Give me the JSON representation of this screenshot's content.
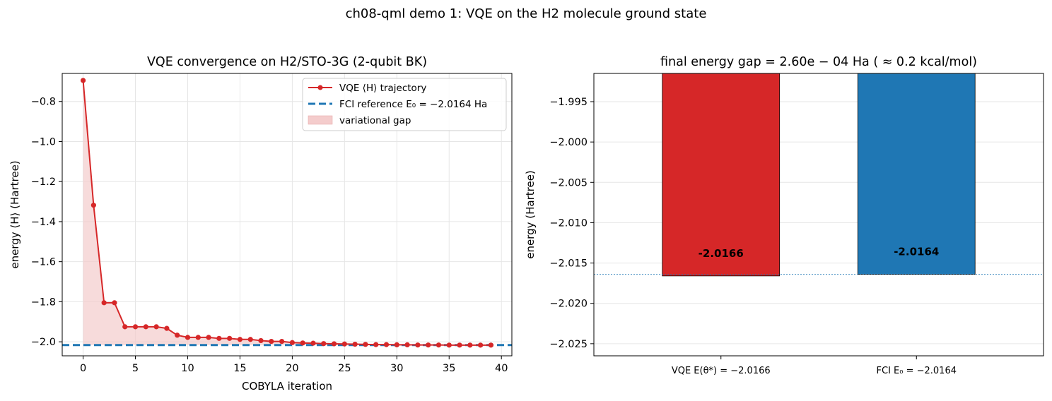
{
  "figure": {
    "suptitle": "ch08-qml demo 1: VQE on the H2 molecule ground state"
  },
  "chart_data": [
    {
      "type": "line",
      "title": "VQE convergence on H2/STO-3G (2-qubit BK)",
      "xlabel": "COBYLA iteration",
      "ylabel": "energy ⟨H⟩ (Hartree)",
      "xlim": [
        -2,
        41
      ],
      "ylim": [
        -2.07,
        -0.66
      ],
      "xticks": [
        "0",
        "5",
        "10",
        "15",
        "20",
        "25",
        "30",
        "35",
        "40"
      ],
      "yticks": [
        "−0.8",
        "−1.0",
        "−1.2",
        "−1.4",
        "−1.6",
        "−1.8",
        "−2.0"
      ],
      "grid": true,
      "legend_position": "top-right",
      "series": [
        {
          "name": "VQE ⟨H⟩ trajectory",
          "color": "#d62728",
          "x": [
            0,
            1,
            2,
            3,
            4,
            5,
            6,
            7,
            8,
            9,
            10,
            11,
            12,
            13,
            14,
            15,
            16,
            17,
            18,
            19,
            20,
            21,
            22,
            23,
            24,
            25,
            26,
            27,
            28,
            29,
            30,
            31,
            32,
            33,
            34,
            35,
            36,
            37,
            38,
            39
          ],
          "y": [
            -0.695,
            -1.318,
            -1.805,
            -1.805,
            -1.925,
            -1.925,
            -1.925,
            -1.925,
            -1.933,
            -1.967,
            -1.978,
            -1.978,
            -1.978,
            -1.983,
            -1.983,
            -1.988,
            -1.988,
            -1.994,
            -1.998,
            -1.998,
            -2.004,
            -2.006,
            -2.007,
            -2.009,
            -2.01,
            -2.011,
            -2.012,
            -2.013,
            -2.014,
            -2.014,
            -2.015,
            -2.015,
            -2.016,
            -2.016,
            -2.016,
            -2.0165,
            -2.0165,
            -2.0166,
            -2.0166,
            -2.0166
          ]
        },
        {
          "name": "FCI reference E₀ = −2.0164 Ha",
          "color": "#1f77b4",
          "y": -2.0164
        },
        {
          "name": "variational gap",
          "color": "#f4cccc"
        }
      ]
    },
    {
      "type": "bar",
      "title": "final energy gap = 2.60e − 04 Ha ( ≈ 0.2 kcal/mol)",
      "xlabel": "",
      "ylabel": "energy (Hartree)",
      "ylim": [
        -2.0265,
        -1.9915
      ],
      "yticks": [
        "−1.995",
        "−2.000",
        "−2.005",
        "−2.010",
        "−2.015",
        "−2.020",
        "−2.025"
      ],
      "categories": [
        "VQE E(θ*) = −2.0166",
        "FCI E₀ = −2.0164"
      ],
      "values": [
        -2.0166,
        -2.0164
      ],
      "value_labels": [
        "-2.0166",
        "-2.0164"
      ],
      "colors": [
        "#d62728",
        "#1f77b4"
      ],
      "reference_line": -2.0164,
      "grid": true
    }
  ]
}
